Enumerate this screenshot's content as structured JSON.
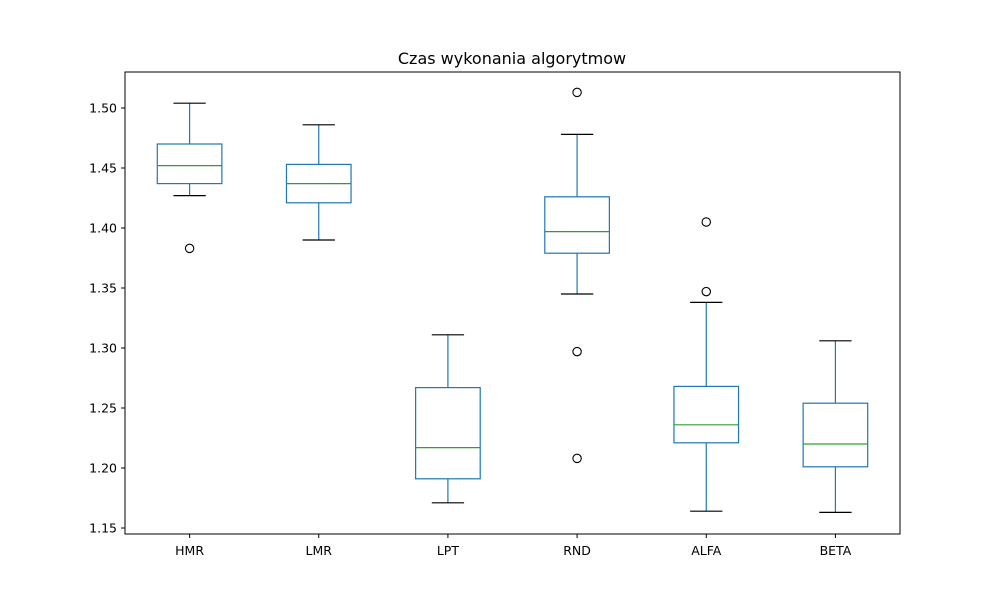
{
  "chart_data": {
    "type": "box",
    "title": "Czas wykonania algorytmow",
    "xlabel": "",
    "ylabel": "",
    "ylim": [
      1.145,
      1.53
    ],
    "yticks": [
      1.15,
      1.2,
      1.25,
      1.3,
      1.35,
      1.4,
      1.45,
      1.5
    ],
    "ytick_labels": [
      "1.15",
      "1.20",
      "1.25",
      "1.30",
      "1.35",
      "1.40",
      "1.45",
      "1.50"
    ],
    "grid": false,
    "colors": {
      "box": "#1f77b4",
      "median": "#2ca02c",
      "whisker_cap": "#000000",
      "outlier": "#000000"
    },
    "categories": [
      "HMR",
      "LMR",
      "LPT",
      "RND",
      "ALFA",
      "BETA"
    ],
    "boxes": [
      {
        "label": "HMR",
        "whisker_low": 1.427,
        "q1": 1.437,
        "median": 1.452,
        "q3": 1.47,
        "whisker_high": 1.504,
        "outliers": [
          1.383
        ]
      },
      {
        "label": "LMR",
        "whisker_low": 1.39,
        "q1": 1.421,
        "median": 1.437,
        "q3": 1.453,
        "whisker_high": 1.486,
        "outliers": []
      },
      {
        "label": "LPT",
        "whisker_low": 1.171,
        "q1": 1.191,
        "median": 1.217,
        "q3": 1.267,
        "whisker_high": 1.311,
        "outliers": []
      },
      {
        "label": "RND",
        "whisker_low": 1.345,
        "q1": 1.379,
        "median": 1.397,
        "q3": 1.426,
        "whisker_high": 1.478,
        "outliers": [
          1.513,
          1.297,
          1.208
        ]
      },
      {
        "label": "ALFA",
        "whisker_low": 1.164,
        "q1": 1.221,
        "median": 1.236,
        "q3": 1.268,
        "whisker_high": 1.338,
        "outliers": [
          1.405,
          1.347
        ]
      },
      {
        "label": "BETA",
        "whisker_low": 1.163,
        "q1": 1.201,
        "median": 1.22,
        "q3": 1.254,
        "whisker_high": 1.306,
        "outliers": []
      }
    ]
  }
}
